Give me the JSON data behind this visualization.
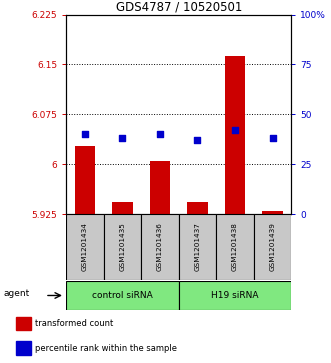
{
  "title": "GDS4787 / 10520501",
  "samples": [
    "GSM1201434",
    "GSM1201435",
    "GSM1201436",
    "GSM1201437",
    "GSM1201438",
    "GSM1201439"
  ],
  "bar_values": [
    6.027,
    5.944,
    6.005,
    5.944,
    6.163,
    5.93
  ],
  "dot_values": [
    40,
    38,
    40,
    37,
    42,
    38
  ],
  "ylim_left": [
    5.925,
    6.225
  ],
  "ylim_right": [
    0,
    100
  ],
  "yticks_left": [
    5.925,
    6.0,
    6.075,
    6.15,
    6.225
  ],
  "yticks_right": [
    0,
    25,
    50,
    75,
    100
  ],
  "ytick_labels_left": [
    "5.925",
    "6",
    "6.075",
    "6.15",
    "6.225"
  ],
  "ytick_labels_right": [
    "0",
    "25",
    "50",
    "75",
    "100%"
  ],
  "bar_color": "#CC0000",
  "dot_color": "#0000CC",
  "bar_bottom": 5.925,
  "agent_label": "agent",
  "legend_bar_label": "transformed count",
  "legend_dot_label": "percentile rank within the sample",
  "sample_box_color": "#C8C8C8",
  "green_color": "#80E880",
  "groups_info": [
    {
      "label": "control siRNA",
      "start": 0,
      "end": 3
    },
    {
      "label": "H19 siRNA",
      "start": 3,
      "end": 6
    }
  ],
  "figsize": [
    3.31,
    3.63
  ],
  "dpi": 100
}
